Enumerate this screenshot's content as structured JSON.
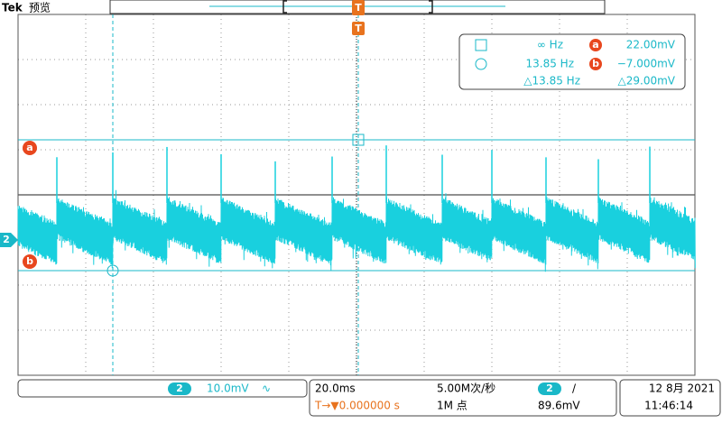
{
  "header": {
    "brand": "Tek",
    "mode": "预览"
  },
  "trigger": {
    "top_marker": "T",
    "marker": "T"
  },
  "cursor_readout": {
    "row1": {
      "freq": "∞ Hz",
      "badge": "a",
      "value": "22.00mV"
    },
    "row2": {
      "freq": "13.85 Hz",
      "badge": "b",
      "value": "−7.000mV"
    },
    "row3": {
      "freq": "△13.85 Hz",
      "value": "△29.00mV"
    }
  },
  "markers": {
    "cursor_a": "a",
    "channel": "2",
    "cursor_b": "b"
  },
  "status": {
    "channel": {
      "badge": "2",
      "scale": "10.0mV",
      "coupling": "∿"
    },
    "timebase": {
      "scale": "20.0ms",
      "rate": "5.00M次/秒",
      "trigger_position": "T→▼0.000000 s",
      "length": "1M 点"
    },
    "trigger_info": {
      "badge": "2",
      "slope": "/",
      "level": "89.6mV"
    },
    "clock": {
      "date": "12 8月 2021",
      "time": "11:46:14"
    }
  }
}
